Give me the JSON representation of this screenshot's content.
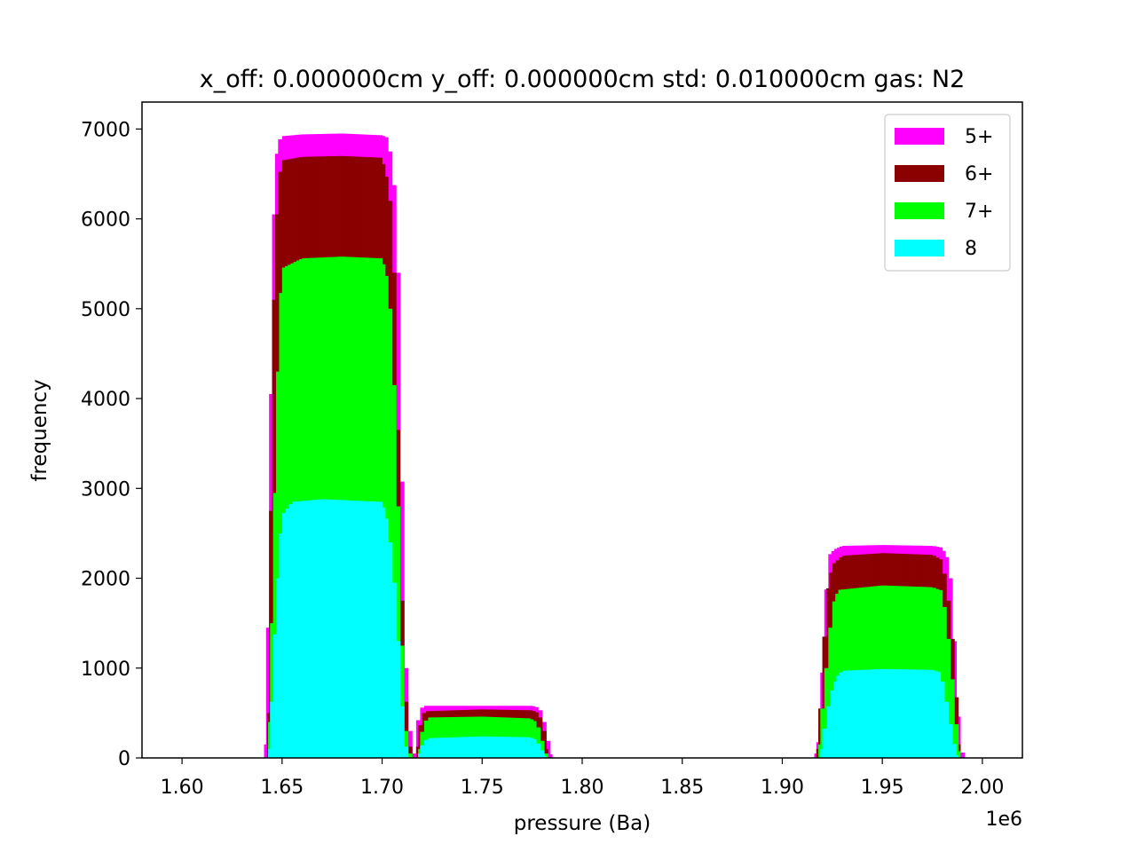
{
  "chart_data": {
    "type": "histogram",
    "title": "x_off: 0.000000cm y_off: 0.000000cm std: 0.010000cm gas: N2",
    "xlabel": "pressure (Ba)",
    "ylabel": "frequency",
    "x_offset_label": "1e6",
    "xlim": [
      1.58,
      2.02
    ],
    "ylim": [
      0,
      7300
    ],
    "x_ticks": [
      1.6,
      1.65,
      1.7,
      1.75,
      1.8,
      1.85,
      1.9,
      1.95,
      2.0
    ],
    "x_tick_labels": [
      "1.60",
      "1.65",
      "1.70",
      "1.75",
      "1.80",
      "1.85",
      "1.90",
      "1.95",
      "2.00"
    ],
    "y_ticks": [
      0,
      1000,
      2000,
      3000,
      4000,
      5000,
      6000,
      7000
    ],
    "y_tick_labels": [
      "0",
      "1000",
      "2000",
      "3000",
      "4000",
      "5000",
      "6000",
      "7000"
    ],
    "legend_position": "top-right",
    "grid": false,
    "series": [
      {
        "name": "5+",
        "color": "#ff00ff",
        "profile": [
          [
            1.641,
            0
          ],
          [
            1.642,
            300
          ],
          [
            1.6435,
            2600
          ],
          [
            1.645,
            5500
          ],
          [
            1.6465,
            6600
          ],
          [
            1.648,
            6850
          ],
          [
            1.65,
            6920
          ],
          [
            1.66,
            6940
          ],
          [
            1.68,
            6950
          ],
          [
            1.7,
            6930
          ],
          [
            1.703,
            6900
          ],
          [
            1.705,
            6600
          ],
          [
            1.707,
            6150
          ],
          [
            1.709,
            4650
          ],
          [
            1.711,
            1500
          ],
          [
            1.713,
            500
          ],
          [
            1.715,
            100
          ],
          [
            1.717,
            0
          ],
          [
            1.717,
            300
          ],
          [
            1.719,
            540
          ],
          [
            1.721,
            580
          ],
          [
            1.75,
            580
          ],
          [
            1.775,
            580
          ],
          [
            1.778,
            560
          ],
          [
            1.78,
            500
          ],
          [
            1.782,
            300
          ],
          [
            1.784,
            80
          ],
          [
            1.785,
            0
          ],
          [
            1.916,
            0
          ],
          [
            1.917,
            100
          ],
          [
            1.918,
            250
          ],
          [
            1.919,
            400
          ],
          [
            1.921,
            1500
          ],
          [
            1.923,
            2250
          ],
          [
            1.926,
            2320
          ],
          [
            1.93,
            2360
          ],
          [
            1.95,
            2370
          ],
          [
            1.975,
            2360
          ],
          [
            1.98,
            2340
          ],
          [
            1.983,
            2200
          ],
          [
            1.985,
            1800
          ],
          [
            1.987,
            800
          ],
          [
            1.989,
            120
          ],
          [
            1.991,
            0
          ]
        ]
      },
      {
        "name": "6+",
        "color": "#8b0000",
        "profile": [
          [
            1.6425,
            0
          ],
          [
            1.6435,
            1000
          ],
          [
            1.645,
            4500
          ],
          [
            1.6465,
            5700
          ],
          [
            1.648,
            6400
          ],
          [
            1.65,
            6650
          ],
          [
            1.66,
            6690
          ],
          [
            1.68,
            6700
          ],
          [
            1.7,
            6680
          ],
          [
            1.703,
            6400
          ],
          [
            1.705,
            6000
          ],
          [
            1.707,
            4800
          ],
          [
            1.709,
            2500
          ],
          [
            1.711,
            1000
          ],
          [
            1.713,
            250
          ],
          [
            1.715,
            0
          ],
          [
            1.717,
            0
          ],
          [
            1.718,
            250
          ],
          [
            1.72,
            480
          ],
          [
            1.722,
            520
          ],
          [
            1.75,
            540
          ],
          [
            1.775,
            530
          ],
          [
            1.778,
            500
          ],
          [
            1.78,
            400
          ],
          [
            1.782,
            200
          ],
          [
            1.783,
            0
          ],
          [
            1.917,
            0
          ],
          [
            1.918,
            200
          ],
          [
            1.92,
            900
          ],
          [
            1.922,
            1800
          ],
          [
            1.925,
            2150
          ],
          [
            1.93,
            2250
          ],
          [
            1.95,
            2280
          ],
          [
            1.975,
            2260
          ],
          [
            1.98,
            2200
          ],
          [
            1.982,
            1900
          ],
          [
            1.984,
            1600
          ],
          [
            1.986,
            1050
          ],
          [
            1.988,
            300
          ],
          [
            1.989,
            0
          ]
        ]
      },
      {
        "name": "7+",
        "color": "#00ff00",
        "profile": [
          [
            1.643,
            0
          ],
          [
            1.644,
            800
          ],
          [
            1.6455,
            2200
          ],
          [
            1.647,
            3700
          ],
          [
            1.6485,
            4900
          ],
          [
            1.65,
            5450
          ],
          [
            1.66,
            5560
          ],
          [
            1.68,
            5580
          ],
          [
            1.7,
            5560
          ],
          [
            1.703,
            5300
          ],
          [
            1.705,
            4700
          ],
          [
            1.707,
            3600
          ],
          [
            1.709,
            2000
          ],
          [
            1.711,
            500
          ],
          [
            1.713,
            100
          ],
          [
            1.715,
            0
          ],
          [
            1.718,
            0
          ],
          [
            1.719,
            200
          ],
          [
            1.721,
            380
          ],
          [
            1.723,
            450
          ],
          [
            1.75,
            460
          ],
          [
            1.774,
            440
          ],
          [
            1.777,
            400
          ],
          [
            1.779,
            280
          ],
          [
            1.781,
            100
          ],
          [
            1.783,
            0
          ],
          [
            1.918,
            0
          ],
          [
            1.919,
            300
          ],
          [
            1.921,
            800
          ],
          [
            1.923,
            1200
          ],
          [
            1.925,
            1700
          ],
          [
            1.928,
            1870
          ],
          [
            1.95,
            1920
          ],
          [
            1.975,
            1900
          ],
          [
            1.98,
            1860
          ],
          [
            1.982,
            1500
          ],
          [
            1.984,
            1150
          ],
          [
            1.986,
            600
          ],
          [
            1.988,
            150
          ],
          [
            1.989,
            0
          ]
        ]
      },
      {
        "name": "8",
        "color": "#00ffff",
        "profile": [
          [
            1.643,
            0
          ],
          [
            1.644,
            200
          ],
          [
            1.6455,
            1050
          ],
          [
            1.647,
            1700
          ],
          [
            1.6485,
            2300
          ],
          [
            1.65,
            2700
          ],
          [
            1.655,
            2850
          ],
          [
            1.67,
            2880
          ],
          [
            1.69,
            2860
          ],
          [
            1.7,
            2850
          ],
          [
            1.703,
            2600
          ],
          [
            1.705,
            2200
          ],
          [
            1.707,
            1700
          ],
          [
            1.709,
            900
          ],
          [
            1.711,
            250
          ],
          [
            1.713,
            0
          ],
          [
            1.718,
            0
          ],
          [
            1.719,
            100
          ],
          [
            1.721,
            180
          ],
          [
            1.723,
            220
          ],
          [
            1.75,
            240
          ],
          [
            1.774,
            230
          ],
          [
            1.777,
            200
          ],
          [
            1.779,
            120
          ],
          [
            1.781,
            50
          ],
          [
            1.782,
            0
          ],
          [
            1.919,
            0
          ],
          [
            1.92,
            200
          ],
          [
            1.922,
            450
          ],
          [
            1.924,
            700
          ],
          [
            1.927,
            900
          ],
          [
            1.93,
            970
          ],
          [
            1.95,
            990
          ],
          [
            1.975,
            980
          ],
          [
            1.979,
            950
          ],
          [
            1.981,
            750
          ],
          [
            1.983,
            500
          ],
          [
            1.985,
            250
          ],
          [
            1.987,
            60
          ],
          [
            1.988,
            0
          ]
        ]
      }
    ]
  }
}
